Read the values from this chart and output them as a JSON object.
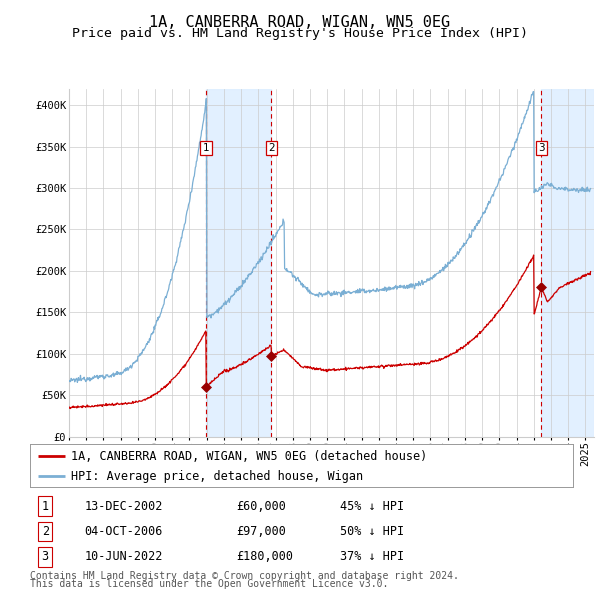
{
  "title": "1A, CANBERRA ROAD, WIGAN, WN5 0EG",
  "subtitle": "Price paid vs. HM Land Registry's House Price Index (HPI)",
  "ylim": [
    0,
    420000
  ],
  "yticks": [
    0,
    50000,
    100000,
    150000,
    200000,
    250000,
    300000,
    350000,
    400000
  ],
  "ytick_labels": [
    "£0",
    "£50K",
    "£100K",
    "£150K",
    "£200K",
    "£250K",
    "£300K",
    "£350K",
    "£400K"
  ],
  "xlim_start": 1995.0,
  "xlim_end": 2025.5,
  "hpi_color": "#7bafd4",
  "price_color": "#cc0000",
  "marker_color": "#990000",
  "vline_color": "#cc0000",
  "shade_color": "#ddeeff",
  "background_color": "#ffffff",
  "grid_color": "#cccccc",
  "legend_label_red": "1A, CANBERRA ROAD, WIGAN, WN5 0EG (detached house)",
  "legend_label_blue": "HPI: Average price, detached house, Wigan",
  "transactions": [
    {
      "num": 1,
      "date": "13-DEC-2002",
      "date_float": 2002.96,
      "price": 60000,
      "label": "£60,000",
      "pct": "45%",
      "dir": "↓"
    },
    {
      "num": 2,
      "date": "04-OCT-2006",
      "date_float": 2006.75,
      "price": 97000,
      "label": "£97,000",
      "pct": "50%",
      "dir": "↓"
    },
    {
      "num": 3,
      "date": "10-JUN-2022",
      "date_float": 2022.44,
      "price": 180000,
      "label": "£180,000",
      "pct": "37%",
      "dir": "↓"
    }
  ],
  "footer1": "Contains HM Land Registry data © Crown copyright and database right 2024.",
  "footer2": "This data is licensed under the Open Government Licence v3.0.",
  "title_fontsize": 11,
  "subtitle_fontsize": 9.5,
  "tick_fontsize": 7.5,
  "legend_fontsize": 8.5,
  "table_fontsize": 8.5,
  "footer_fontsize": 7
}
